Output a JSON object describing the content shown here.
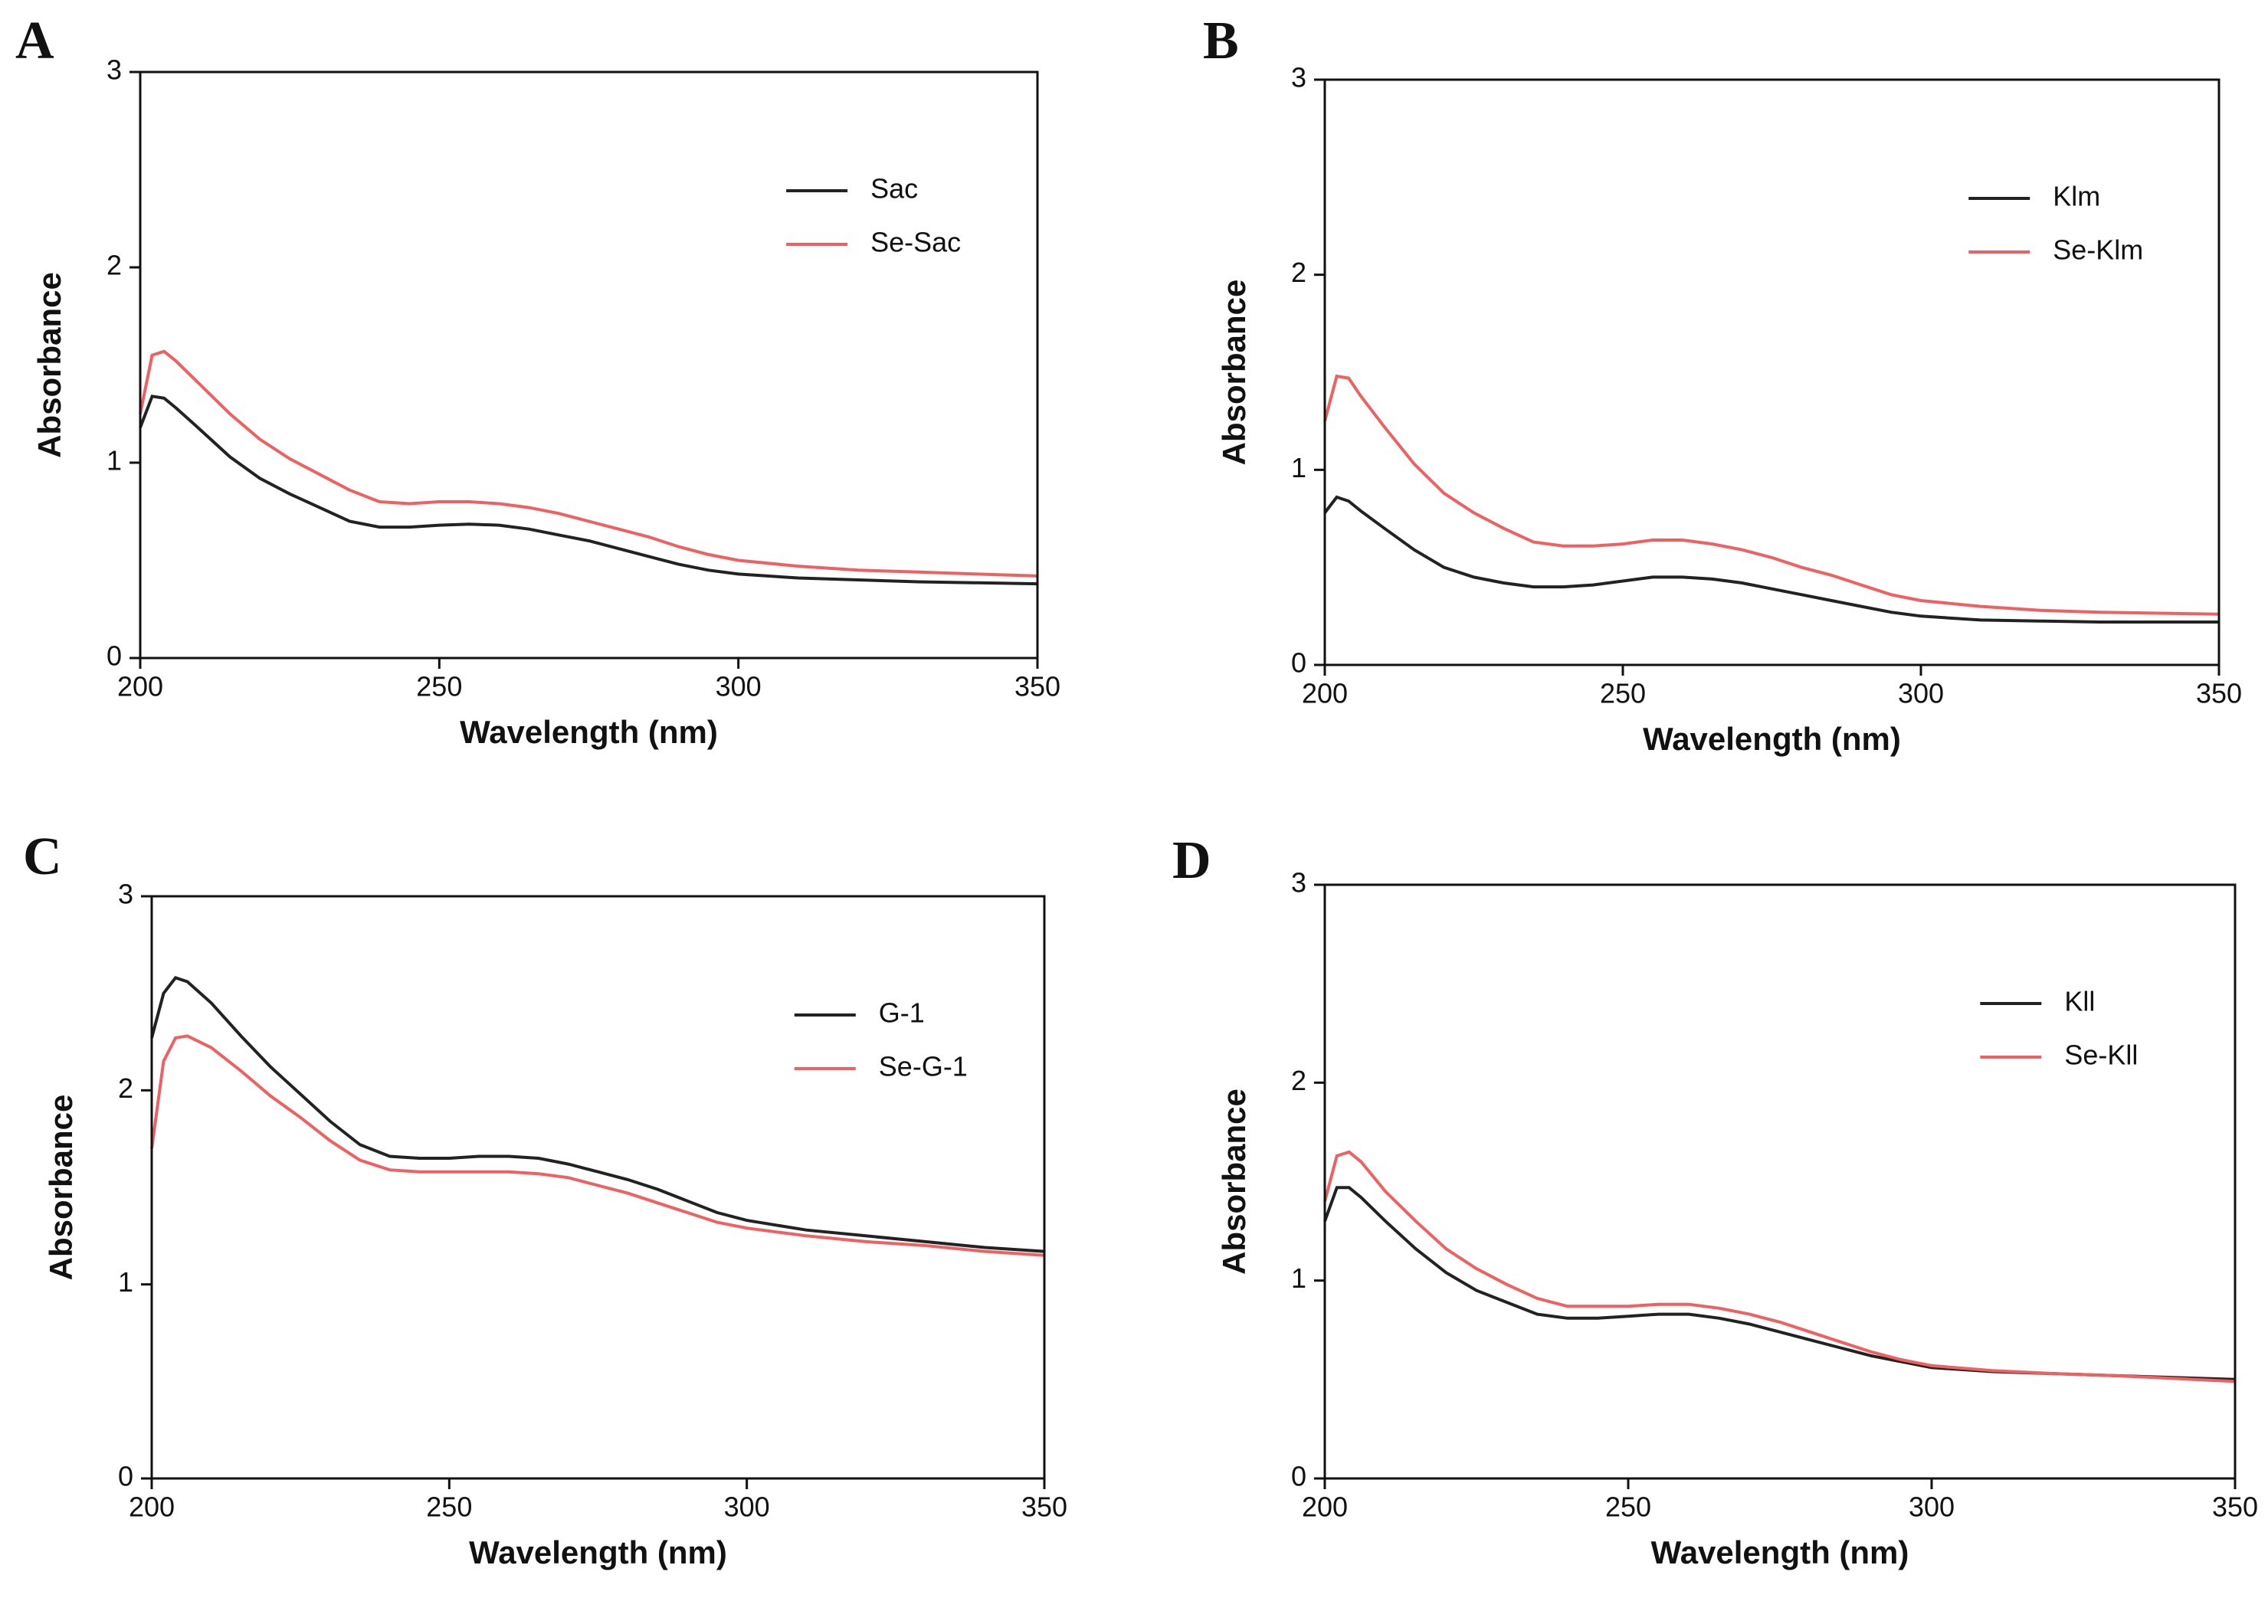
{
  "chart_data": [
    {
      "type": "line",
      "label": "A",
      "x_label": "Wavelength (nm)",
      "y_label": "Absorbance",
      "x": [
        200,
        202,
        204,
        206,
        210,
        215,
        220,
        225,
        230,
        235,
        240,
        245,
        250,
        255,
        260,
        265,
        270,
        275,
        280,
        285,
        290,
        295,
        300,
        310,
        320,
        330,
        340,
        350
      ],
      "series": [
        {
          "name": "Sac",
          "color": "#222222",
          "values": [
            1.18,
            1.34,
            1.33,
            1.28,
            1.17,
            1.03,
            0.92,
            0.84,
            0.77,
            0.7,
            0.67,
            0.67,
            0.68,
            0.685,
            0.68,
            0.66,
            0.63,
            0.6,
            0.56,
            0.52,
            0.48,
            0.45,
            0.43,
            0.41,
            0.4,
            0.39,
            0.385,
            0.38
          ]
        },
        {
          "name": "Se-Sac",
          "color": "#f06060",
          "values": [
            1.25,
            1.55,
            1.57,
            1.52,
            1.4,
            1.25,
            1.12,
            1.02,
            0.94,
            0.86,
            0.8,
            0.79,
            0.8,
            0.8,
            0.79,
            0.77,
            0.74,
            0.7,
            0.66,
            0.62,
            0.57,
            0.53,
            0.5,
            0.47,
            0.45,
            0.44,
            0.43,
            0.42
          ]
        }
      ],
      "xlim": [
        200,
        350
      ],
      "ylim": [
        0,
        3
      ],
      "xticks": [
        200,
        250,
        300,
        350
      ],
      "yticks": [
        0,
        1,
        2,
        3
      ]
    },
    {
      "type": "line",
      "label": "B",
      "x_label": "Wavelength (nm)",
      "y_label": "Absorbance",
      "x": [
        200,
        202,
        204,
        206,
        210,
        215,
        220,
        225,
        230,
        235,
        240,
        245,
        250,
        255,
        260,
        265,
        270,
        275,
        280,
        285,
        290,
        295,
        300,
        310,
        320,
        330,
        340,
        350
      ],
      "series": [
        {
          "name": "Klm",
          "color": "#222222",
          "values": [
            0.78,
            0.86,
            0.84,
            0.79,
            0.7,
            0.59,
            0.5,
            0.45,
            0.42,
            0.4,
            0.4,
            0.41,
            0.43,
            0.45,
            0.45,
            0.44,
            0.42,
            0.39,
            0.36,
            0.33,
            0.3,
            0.27,
            0.25,
            0.23,
            0.225,
            0.22,
            0.22,
            0.22
          ]
        },
        {
          "name": "Se-Klm",
          "color": "#f06060",
          "values": [
            1.25,
            1.48,
            1.47,
            1.38,
            1.22,
            1.03,
            0.88,
            0.78,
            0.7,
            0.63,
            0.61,
            0.61,
            0.62,
            0.64,
            0.64,
            0.62,
            0.59,
            0.55,
            0.5,
            0.46,
            0.41,
            0.36,
            0.33,
            0.3,
            0.28,
            0.27,
            0.265,
            0.26
          ]
        }
      ],
      "xlim": [
        200,
        350
      ],
      "ylim": [
        0,
        3
      ],
      "xticks": [
        200,
        250,
        300,
        350
      ],
      "yticks": [
        0,
        1,
        2,
        3
      ]
    },
    {
      "type": "line",
      "label": "C",
      "x_label": "Wavelength (nm)",
      "y_label": "Absorbance",
      "x": [
        200,
        202,
        204,
        206,
        210,
        215,
        220,
        225,
        230,
        235,
        240,
        245,
        250,
        255,
        260,
        265,
        270,
        275,
        280,
        285,
        290,
        295,
        300,
        310,
        320,
        330,
        340,
        350
      ],
      "series": [
        {
          "name": "G-1",
          "color": "#222222",
          "values": [
            2.27,
            2.5,
            2.58,
            2.56,
            2.45,
            2.28,
            2.12,
            1.98,
            1.84,
            1.72,
            1.66,
            1.65,
            1.65,
            1.66,
            1.66,
            1.65,
            1.62,
            1.58,
            1.54,
            1.49,
            1.43,
            1.37,
            1.33,
            1.28,
            1.25,
            1.22,
            1.19,
            1.17
          ]
        },
        {
          "name": "Se-G-1",
          "color": "#f06060",
          "values": [
            1.7,
            2.15,
            2.27,
            2.28,
            2.22,
            2.1,
            1.97,
            1.86,
            1.74,
            1.64,
            1.59,
            1.58,
            1.58,
            1.58,
            1.58,
            1.57,
            1.55,
            1.51,
            1.47,
            1.42,
            1.37,
            1.32,
            1.29,
            1.25,
            1.22,
            1.2,
            1.17,
            1.15
          ]
        }
      ],
      "xlim": [
        200,
        350
      ],
      "ylim": [
        0,
        3
      ],
      "xticks": [
        200,
        250,
        300,
        350
      ],
      "yticks": [
        0,
        1,
        2,
        3
      ]
    },
    {
      "type": "line",
      "label": "D",
      "x_label": "Wavelength (nm)",
      "y_label": "Absorbance",
      "x": [
        200,
        202,
        204,
        206,
        210,
        215,
        220,
        225,
        230,
        235,
        240,
        245,
        250,
        255,
        260,
        265,
        270,
        275,
        280,
        285,
        290,
        295,
        300,
        310,
        320,
        330,
        340,
        350
      ],
      "series": [
        {
          "name": "Kll",
          "color": "#222222",
          "values": [
            1.3,
            1.47,
            1.47,
            1.42,
            1.3,
            1.16,
            1.04,
            0.95,
            0.89,
            0.83,
            0.81,
            0.81,
            0.82,
            0.83,
            0.83,
            0.81,
            0.78,
            0.74,
            0.7,
            0.66,
            0.62,
            0.59,
            0.56,
            0.54,
            0.53,
            0.52,
            0.51,
            0.5
          ]
        },
        {
          "name": "Se-Kll",
          "color": "#f06060",
          "values": [
            1.4,
            1.63,
            1.65,
            1.6,
            1.45,
            1.3,
            1.16,
            1.06,
            0.98,
            0.91,
            0.87,
            0.87,
            0.87,
            0.88,
            0.88,
            0.86,
            0.83,
            0.79,
            0.74,
            0.69,
            0.64,
            0.6,
            0.57,
            0.545,
            0.53,
            0.52,
            0.505,
            0.49
          ]
        }
      ],
      "xlim": [
        200,
        350
      ],
      "ylim": [
        0,
        3
      ],
      "xticks": [
        200,
        250,
        300,
        350
      ],
      "yticks": [
        0,
        1,
        2,
        3
      ]
    }
  ]
}
